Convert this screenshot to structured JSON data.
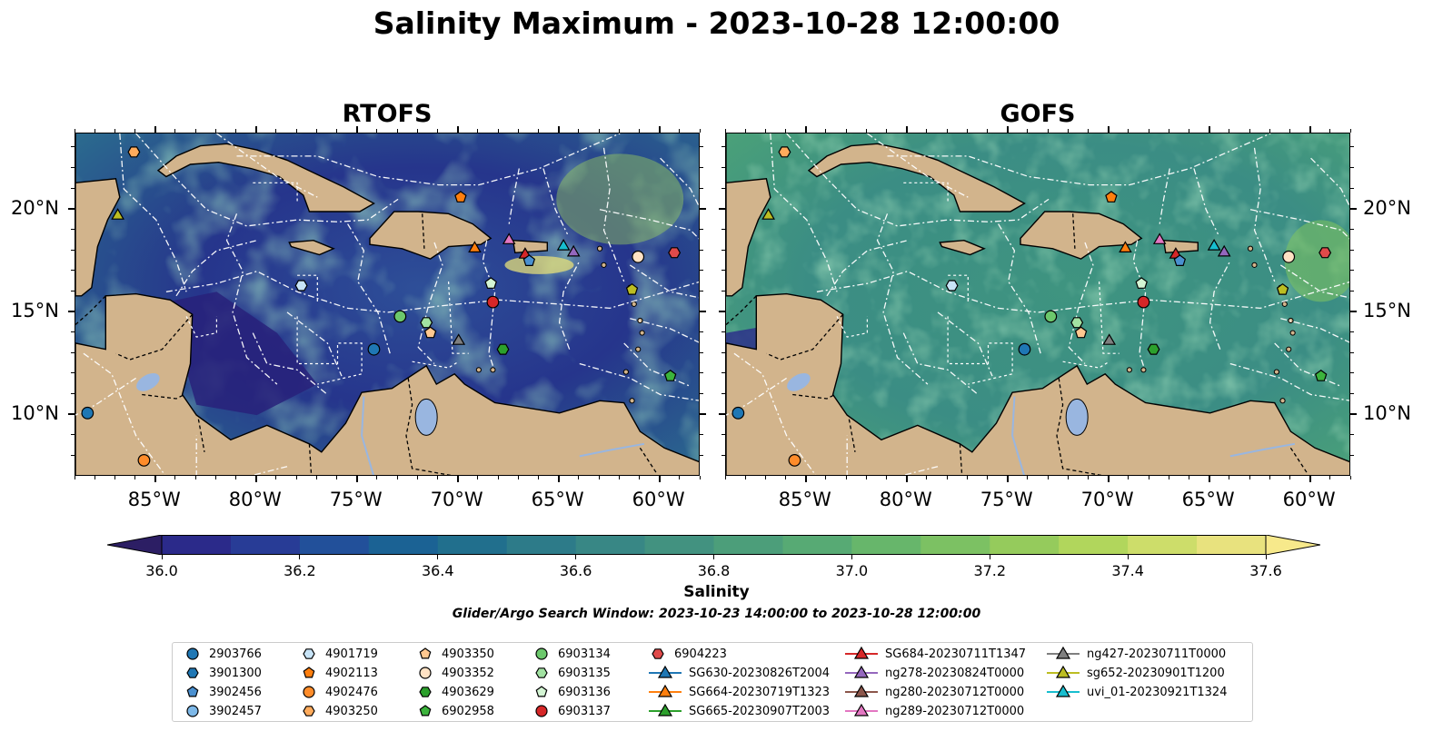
{
  "title": "Salinity Maximum - 2023-10-28 12:00:00",
  "panels": [
    {
      "title": "RTOFS",
      "variant": "rtofs"
    },
    {
      "title": "GOFS",
      "variant": "gofs"
    }
  ],
  "axes": {
    "lon_ticks": [
      "85°W",
      "80°W",
      "75°W",
      "70°W",
      "65°W",
      "60°W"
    ],
    "lat_ticks": [
      "20°N",
      "15°N",
      "10°N"
    ]
  },
  "colorbar": {
    "label": "Salinity",
    "ticks": [
      "36.0",
      "36.2",
      "36.4",
      "36.6",
      "36.8",
      "37.0",
      "37.2",
      "37.4",
      "37.6"
    ],
    "colors": [
      "#2c1e64",
      "#2b2a8a",
      "#283c96",
      "#22509a",
      "#1b6294",
      "#216f8d",
      "#2d7b89",
      "#388785",
      "#429280",
      "#4c9e7a",
      "#57aa74",
      "#67b66b",
      "#7cc163",
      "#95cb5c",
      "#b1d65c",
      "#cddd6a",
      "#e8e27e",
      "#f7e98b"
    ]
  },
  "search_window": "Glider/Argo Search Window: 2023-10-23 14:00:00 to 2023-10-28 12:00:00",
  "legend": {
    "columns": [
      [
        {
          "label": "2903766",
          "marker": "circle",
          "color": "#1f77b4"
        },
        {
          "label": "3901300",
          "marker": "hexagon",
          "color": "#1f77b4"
        },
        {
          "label": "3902456",
          "marker": "pentagon",
          "color": "#4a90d0"
        },
        {
          "label": "3902457",
          "marker": "circle",
          "color": "#7db8e8"
        }
      ],
      [
        {
          "label": "4901719",
          "marker": "hexagon",
          "color": "#c8e4f7"
        },
        {
          "label": "4902113",
          "marker": "pentagon",
          "color": "#ff7f0e"
        },
        {
          "label": "4902476",
          "marker": "circle",
          "color": "#ff8c2a"
        },
        {
          "label": "4903250",
          "marker": "hexagon",
          "color": "#ffab5c"
        }
      ],
      [
        {
          "label": "4903350",
          "marker": "pentagon",
          "color": "#ffc890"
        },
        {
          "label": "4903352",
          "marker": "circle",
          "color": "#ffe2c4"
        },
        {
          "label": "4903629",
          "marker": "hexagon",
          "color": "#2ca02c"
        },
        {
          "label": "6902958",
          "marker": "pentagon",
          "color": "#3cb33c"
        }
      ],
      [
        {
          "label": "6903134",
          "marker": "circle",
          "color": "#6cc86c"
        },
        {
          "label": "6903135",
          "marker": "hexagon",
          "color": "#a2e2a2"
        },
        {
          "label": "6903136",
          "marker": "pentagon",
          "color": "#d4f5d4"
        },
        {
          "label": "6903137",
          "marker": "circle",
          "color": "#d62728"
        }
      ],
      [
        {
          "label": "6904223",
          "marker": "hexagon",
          "color": "#e04a4a"
        },
        {
          "label": "SG630-20230826T2004",
          "marker": "triangle",
          "color": "#1f77b4"
        },
        {
          "label": "SG664-20230719T1323",
          "marker": "triangle",
          "color": "#ff7f0e"
        },
        {
          "label": "SG665-20230907T2003",
          "marker": "triangle",
          "color": "#2ca02c"
        }
      ],
      [
        {
          "label": "SG684-20230711T1347",
          "marker": "triangle",
          "color": "#d62728"
        },
        {
          "label": "ng278-20230824T0000",
          "marker": "triangle",
          "color": "#9467bd"
        },
        {
          "label": "ng280-20230712T0000",
          "marker": "triangle",
          "color": "#8c564b"
        },
        {
          "label": "ng289-20230712T0000",
          "marker": "triangle",
          "color": "#e377c2"
        }
      ],
      [
        {
          "label": "ng427-20230711T0000",
          "marker": "triangle",
          "color": "#7f7f7f"
        },
        {
          "label": "sg652-20230901T1200",
          "marker": "triangle",
          "color": "#bcbd22"
        },
        {
          "label": "uvi_01-20230921T1324",
          "marker": "triangle",
          "color": "#17becf"
        }
      ]
    ]
  }
}
